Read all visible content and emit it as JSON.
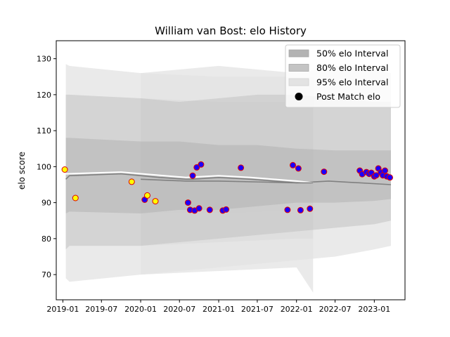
{
  "chart_data": {
    "type": "scatter",
    "title": "William van Bost: elo History",
    "xlabel": "",
    "ylabel": "elo score",
    "xlim": [
      "2018-12-01",
      "2023-05-25"
    ],
    "ylim": [
      63.0,
      135.0
    ],
    "x_ticks": [
      "2019-01",
      "2019-07",
      "2020-01",
      "2020-07",
      "2021-01",
      "2021-07",
      "2022-01",
      "2022-07",
      "2023-01"
    ],
    "y_ticks": [
      70,
      80,
      90,
      100,
      110,
      120,
      130
    ],
    "grid": false,
    "legend": {
      "position": "top-right",
      "entries": [
        "50% elo Interval",
        "80% elo Interval",
        "95% elo Interval",
        "Post Match elo"
      ]
    },
    "colors": {
      "band50": "#b3b3b3",
      "band80": "#c4c4c4",
      "band95": "#e3e3e3",
      "mean_line": "#808080",
      "white_line": "#ffffff",
      "yellow_face": "#ffff00",
      "blue_face": "#1a00ff",
      "marker_edge": "#e00000"
    },
    "bands": [
      {
        "x": [
          "2019-01-15",
          "2019-02-01",
          "2020-01-01",
          "2021-01-01",
          "2022-01-01",
          "2022-03-20"
        ],
        "p95": [
          [
            69,
            128.5
          ],
          [
            68,
            128
          ],
          [
            70,
            126
          ],
          [
            71,
            125
          ],
          [
            72,
            125
          ],
          [
            65,
            125
          ]
        ],
        "p80": [
          [
            77,
            120
          ],
          [
            78,
            120
          ],
          [
            78,
            119
          ],
          [
            79,
            118
          ],
          [
            80,
            118
          ],
          [
            80,
            118
          ]
        ],
        "p50": [
          [
            87,
            108
          ],
          [
            87.5,
            108
          ],
          [
            87,
            107
          ],
          [
            87,
            106
          ],
          [
            88,
            105
          ],
          [
            88,
            105
          ]
        ]
      },
      {
        "x": [
          "2020-01-01",
          "2020-07-01",
          "2021-01-01",
          "2021-07-01",
          "2022-01-01",
          "2022-07-01",
          "2023-01-01",
          "2023-03-20"
        ],
        "p95": [
          [
            70,
            126
          ],
          [
            71,
            127
          ],
          [
            72,
            128
          ],
          [
            73,
            127
          ],
          [
            74,
            126
          ],
          [
            75,
            128
          ],
          [
            77,
            127
          ],
          [
            78,
            126
          ]
        ],
        "p80": [
          [
            78,
            119
          ],
          [
            79,
            118
          ],
          [
            80,
            119
          ],
          [
            81,
            120
          ],
          [
            82,
            120
          ],
          [
            83,
            119
          ],
          [
            84,
            118
          ],
          [
            85,
            118
          ]
        ],
        "p50": [
          [
            87,
            107
          ],
          [
            88,
            107
          ],
          [
            88,
            106
          ],
          [
            89,
            106
          ],
          [
            90,
            105
          ],
          [
            90,
            104.5
          ],
          [
            90.5,
            104.5
          ],
          [
            91,
            104.5
          ]
        ]
      }
    ],
    "line_series": [
      {
        "color": "mean_line",
        "x": [
          "2019-01-15",
          "2019-02-01",
          "2019-10-01",
          "2020-04-01",
          "2020-08-01",
          "2020-09-01",
          "2021-01-01",
          "2021-06-01",
          "2022-01-01",
          "2022-06-01",
          "2023-03-20"
        ],
        "y": [
          96.5,
          97.5,
          98,
          97,
          96.5,
          96.5,
          97,
          96.5,
          95.5,
          96,
          95
        ]
      },
      {
        "color": "white_line",
        "x": [
          "2019-01-15",
          "2019-10-01",
          "2020-08-01",
          "2021-01-01",
          "2021-06-01",
          "2022-01-01",
          "2022-03-20"
        ],
        "y": [
          98,
          98.5,
          97,
          97.5,
          97,
          96,
          95.5
        ]
      },
      {
        "color": "mean_line",
        "x": [
          "2020-01-01",
          "2020-08-01",
          "2021-01-01",
          "2022-01-01",
          "2022-03-20"
        ],
        "y": [
          96.5,
          96,
          96,
          95.5,
          95.5
        ]
      }
    ],
    "points": [
      {
        "x": "2019-01-10",
        "y": 99.2,
        "face": "yellow_face"
      },
      {
        "x": "2019-03-01",
        "y": 91.3,
        "face": "yellow_face"
      },
      {
        "x": "2019-11-20",
        "y": 95.8,
        "face": "yellow_face"
      },
      {
        "x": "2020-01-20",
        "y": 90.8,
        "face": "blue_face"
      },
      {
        "x": "2020-02-01",
        "y": 92.0,
        "face": "yellow_face"
      },
      {
        "x": "2020-03-10",
        "y": 90.4,
        "face": "yellow_face"
      },
      {
        "x": "2020-08-10",
        "y": 90.0,
        "face": "blue_face"
      },
      {
        "x": "2020-08-20",
        "y": 88.0,
        "face": "blue_face"
      },
      {
        "x": "2020-09-01",
        "y": 97.5,
        "face": "blue_face"
      },
      {
        "x": "2020-09-10",
        "y": 87.8,
        "face": "blue_face"
      },
      {
        "x": "2020-09-20",
        "y": 99.8,
        "face": "blue_face"
      },
      {
        "x": "2020-10-01",
        "y": 88.4,
        "face": "blue_face"
      },
      {
        "x": "2020-10-10",
        "y": 100.6,
        "face": "blue_face"
      },
      {
        "x": "2020-11-20",
        "y": 88.0,
        "face": "blue_face"
      },
      {
        "x": "2021-01-20",
        "y": 87.8,
        "face": "blue_face"
      },
      {
        "x": "2021-02-05",
        "y": 88.1,
        "face": "blue_face"
      },
      {
        "x": "2021-04-15",
        "y": 99.7,
        "face": "blue_face"
      },
      {
        "x": "2021-11-20",
        "y": 88.0,
        "face": "blue_face"
      },
      {
        "x": "2021-12-15",
        "y": 100.4,
        "face": "blue_face"
      },
      {
        "x": "2022-01-10",
        "y": 99.5,
        "face": "blue_face"
      },
      {
        "x": "2022-01-20",
        "y": 87.9,
        "face": "blue_face"
      },
      {
        "x": "2022-03-05",
        "y": 88.3,
        "face": "blue_face"
      },
      {
        "x": "2022-05-10",
        "y": 98.6,
        "face": "blue_face"
      },
      {
        "x": "2022-10-25",
        "y": 98.9,
        "face": "blue_face"
      },
      {
        "x": "2022-11-05",
        "y": 97.9,
        "face": "blue_face"
      },
      {
        "x": "2022-11-25",
        "y": 98.5,
        "face": "blue_face"
      },
      {
        "x": "2022-12-08",
        "y": 98.0,
        "face": "blue_face"
      },
      {
        "x": "2022-12-18",
        "y": 98.3,
        "face": "blue_face"
      },
      {
        "x": "2023-01-01",
        "y": 97.3,
        "face": "blue_face"
      },
      {
        "x": "2023-01-10",
        "y": 97.6,
        "face": "blue_face"
      },
      {
        "x": "2023-01-20",
        "y": 99.5,
        "face": "blue_face"
      },
      {
        "x": "2023-02-01",
        "y": 98.4,
        "face": "blue_face"
      },
      {
        "x": "2023-02-10",
        "y": 97.6,
        "face": "blue_face"
      },
      {
        "x": "2023-02-20",
        "y": 98.9,
        "face": "blue_face"
      },
      {
        "x": "2023-03-01",
        "y": 97.3,
        "face": "blue_face"
      },
      {
        "x": "2023-03-15",
        "y": 97.0,
        "face": "blue_face"
      }
    ]
  }
}
